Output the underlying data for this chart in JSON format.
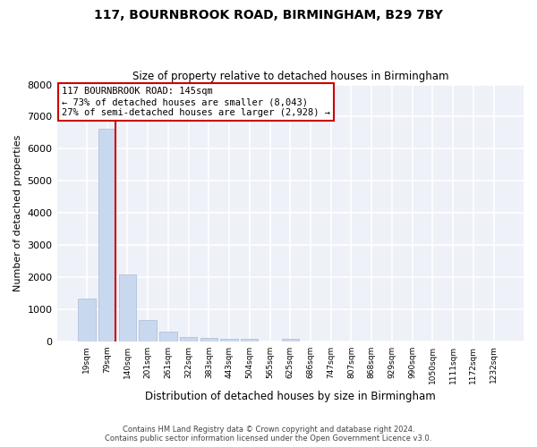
{
  "title": "117, BOURNBROOK ROAD, BIRMINGHAM, B29 7BY",
  "subtitle": "Size of property relative to detached houses in Birmingham",
  "xlabel": "Distribution of detached houses by size in Birmingham",
  "ylabel": "Number of detached properties",
  "bar_labels": [
    "19sqm",
    "79sqm",
    "140sqm",
    "201sqm",
    "261sqm",
    "322sqm",
    "383sqm",
    "443sqm",
    "504sqm",
    "565sqm",
    "625sqm",
    "686sqm",
    "747sqm",
    "807sqm",
    "868sqm",
    "929sqm",
    "990sqm",
    "1050sqm",
    "1111sqm",
    "1172sqm",
    "1232sqm"
  ],
  "bar_heights": [
    1320,
    6620,
    2080,
    650,
    300,
    140,
    100,
    75,
    70,
    0,
    65,
    0,
    0,
    0,
    0,
    0,
    0,
    0,
    0,
    0,
    0
  ],
  "bar_color": "#c8d8ee",
  "bar_edge_color": "#aabbd4",
  "property_line_color": "#cc0000",
  "property_line_bar_index": 1,
  "annotation_title": "117 BOURNBROOK ROAD: 145sqm",
  "annotation_line1": "← 73% of detached houses are smaller (8,043)",
  "annotation_line2": "27% of semi-detached houses are larger (2,928) →",
  "annotation_box_color": "#ffffff",
  "annotation_box_edge": "#cc0000",
  "ylim": [
    0,
    8000
  ],
  "yticks": [
    0,
    1000,
    2000,
    3000,
    4000,
    5000,
    6000,
    7000,
    8000
  ],
  "footer1": "Contains HM Land Registry data © Crown copyright and database right 2024.",
  "footer2": "Contains public sector information licensed under the Open Government Licence v3.0.",
  "background_color": "#ffffff",
  "plot_bg_color": "#eef1f8"
}
